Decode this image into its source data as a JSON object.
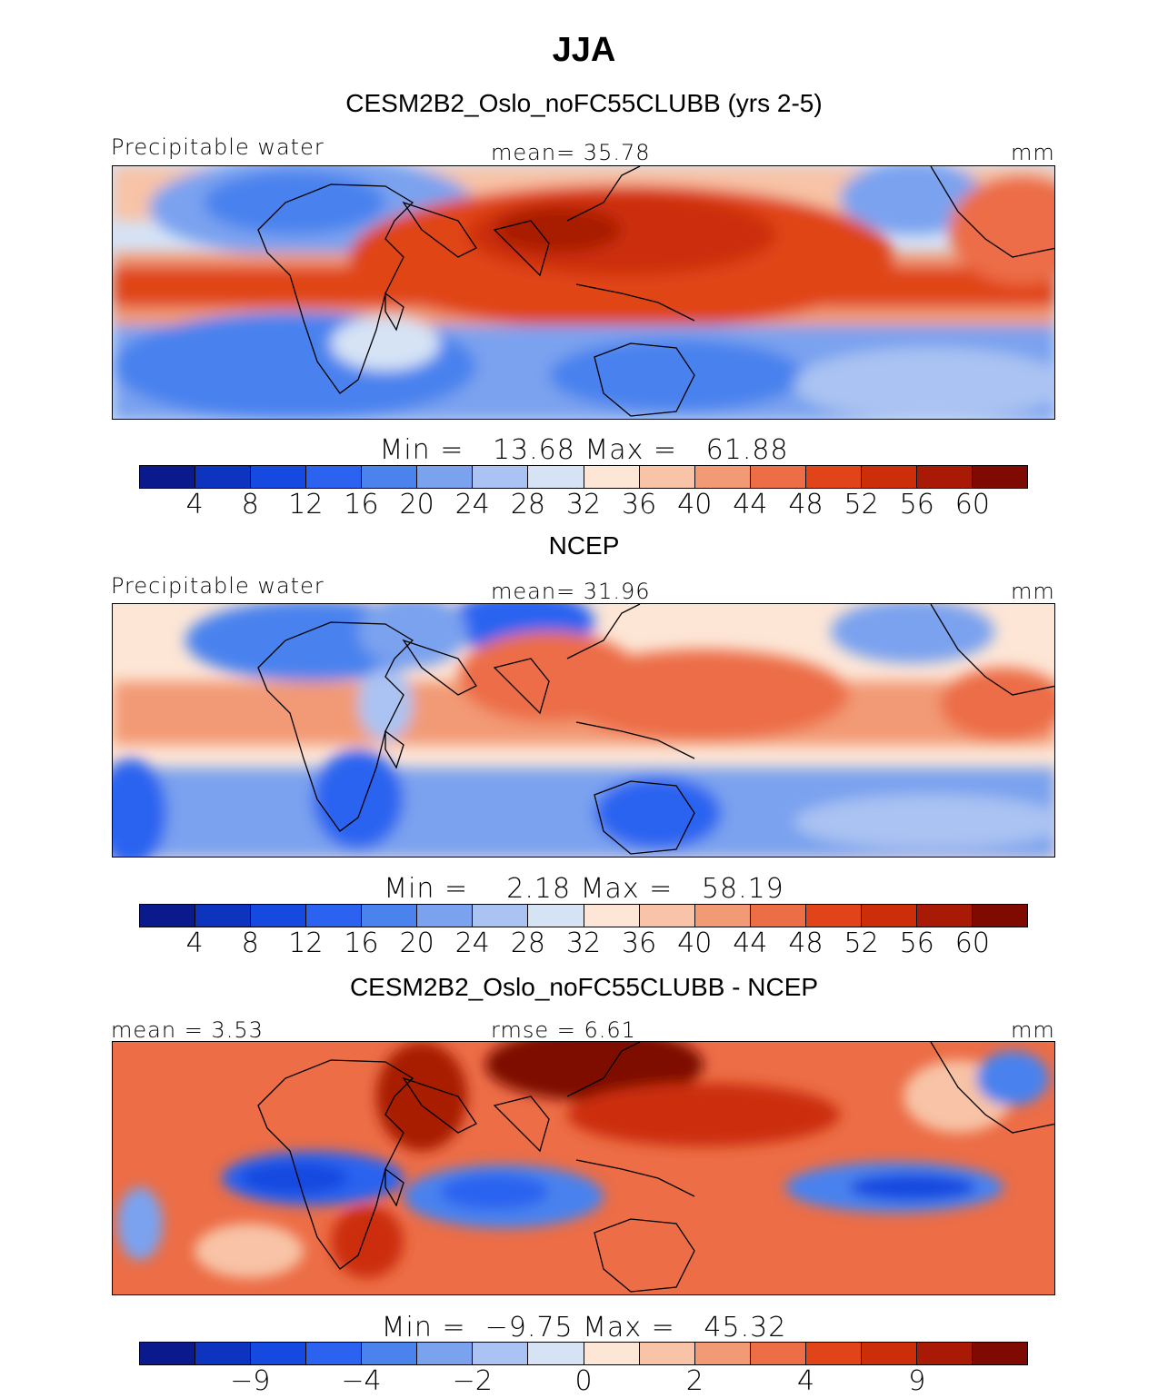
{
  "title": "JJA",
  "palette": [
    "#0a1a8c",
    "#0d34bf",
    "#1549e0",
    "#2b63f0",
    "#4a82ee",
    "#7aa2ef",
    "#aac3f2",
    "#d5e3f5",
    "#fde6d6",
    "#f8c3a6",
    "#f29a75",
    "#ec6d46",
    "#e04418",
    "#cc2e0a",
    "#a81a06",
    "#7e0a02"
  ],
  "panels": [
    {
      "title": "CESM2B2_Oslo_noFC55CLUBB (yrs 2-5)",
      "left_label": "Precipitable water",
      "center_label": "mean=  35.78",
      "units": "mm",
      "minmax": "Min =   13.68 Max =   61.88",
      "ticks": [
        "4",
        "8",
        "12",
        "16",
        "20",
        "24",
        "28",
        "32",
        "36",
        "40",
        "44",
        "48",
        "52",
        "56",
        "60"
      ]
    },
    {
      "title": "NCEP",
      "left_label": "Precipitable water",
      "center_label": "mean=  31.96",
      "units": "mm",
      "minmax": "Min =    2.18 Max =   58.19",
      "ticks": [
        "4",
        "8",
        "12",
        "16",
        "20",
        "24",
        "28",
        "32",
        "36",
        "40",
        "44",
        "48",
        "52",
        "56",
        "60"
      ]
    },
    {
      "title": "CESM2B2_Oslo_noFC55CLUBB - NCEP",
      "left_label": "mean =   3.53",
      "center_label": "rmse =   6.61",
      "units": "mm",
      "minmax": "Min =  −9.75 Max =   45.32",
      "ticks": [
        "−9",
        "−4",
        "−2",
        "0",
        "2",
        "4",
        "9"
      ]
    }
  ],
  "chart_data": [
    {
      "type": "heatmap",
      "title": "CESM2B2_Oslo_noFC55CLUBB (yrs 2-5)",
      "variable": "Precipitable water",
      "units": "mm",
      "mean": 35.78,
      "min": 13.68,
      "max": 61.88,
      "levels": [
        4,
        8,
        12,
        16,
        20,
        24,
        28,
        32,
        36,
        40,
        44,
        48,
        52,
        56,
        60
      ]
    },
    {
      "type": "heatmap",
      "title": "NCEP",
      "variable": "Precipitable water",
      "units": "mm",
      "mean": 31.96,
      "min": 2.18,
      "max": 58.19,
      "levels": [
        4,
        8,
        12,
        16,
        20,
        24,
        28,
        32,
        36,
        40,
        44,
        48,
        52,
        56,
        60
      ]
    },
    {
      "type": "heatmap",
      "title": "CESM2B2_Oslo_noFC55CLUBB - NCEP",
      "units": "mm",
      "mean": 3.53,
      "rmse": 6.61,
      "min": -9.75,
      "max": 45.32,
      "levels": [
        -9,
        -4,
        -2,
        0,
        2,
        4,
        9
      ]
    }
  ]
}
